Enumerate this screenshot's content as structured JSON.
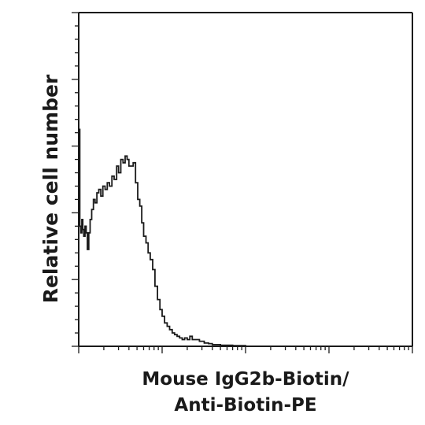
{
  "chart_data": {
    "type": "line",
    "title": "",
    "xlabel_lines": [
      "Mouse IgG2b-Biotin/",
      "Anti-Biotin-PE"
    ],
    "ylabel": "Relative cell number",
    "x_scale": "log",
    "xlim": [
      1,
      10000
    ],
    "ylim": [
      0,
      100
    ],
    "grid": false,
    "legend": "none",
    "line_color": "#1a1a1a",
    "series": [
      {
        "x": [
          1.0,
          1.03,
          1.06,
          1.09,
          1.12,
          1.15,
          1.19,
          1.23,
          1.27,
          1.32,
          1.37,
          1.43,
          1.5,
          1.57,
          1.65,
          1.74,
          1.84,
          1.95,
          2.07,
          2.2,
          2.34,
          2.5,
          2.66,
          2.85,
          3.0,
          3.2,
          3.4,
          3.6,
          3.8,
          4.0,
          4.25,
          4.5,
          4.8,
          5.1,
          5.4,
          5.7,
          6.0,
          6.4,
          6.8,
          7.2,
          7.7,
          8.2,
          8.8,
          9.4,
          10.0,
          10.7,
          11.5,
          12.3,
          13.2,
          14.1,
          15.1,
          16.2,
          17.4,
          18.6,
          20.0,
          21.5,
          23.0,
          25.0,
          28.0,
          32.0,
          36.0,
          40.0,
          50.0,
          70.0,
          100.0,
          1000.0,
          10000.0
        ],
        "y": [
          65,
          36,
          34,
          38,
          35,
          33,
          36,
          34,
          29,
          34,
          38,
          41,
          44,
          43,
          46,
          47,
          45,
          48,
          47,
          49,
          48,
          51,
          50,
          54,
          52,
          56,
          55,
          57,
          56,
          54,
          54,
          55,
          49,
          44,
          42,
          37,
          33,
          31,
          28,
          26,
          23,
          18,
          14,
          11,
          9,
          7,
          6,
          5,
          4,
          3.5,
          3,
          2.5,
          2,
          2.5,
          2,
          3,
          2,
          2,
          1.5,
          1,
          0.8,
          0.5,
          0.3,
          0.2,
          0,
          0,
          0
        ]
      }
    ]
  }
}
